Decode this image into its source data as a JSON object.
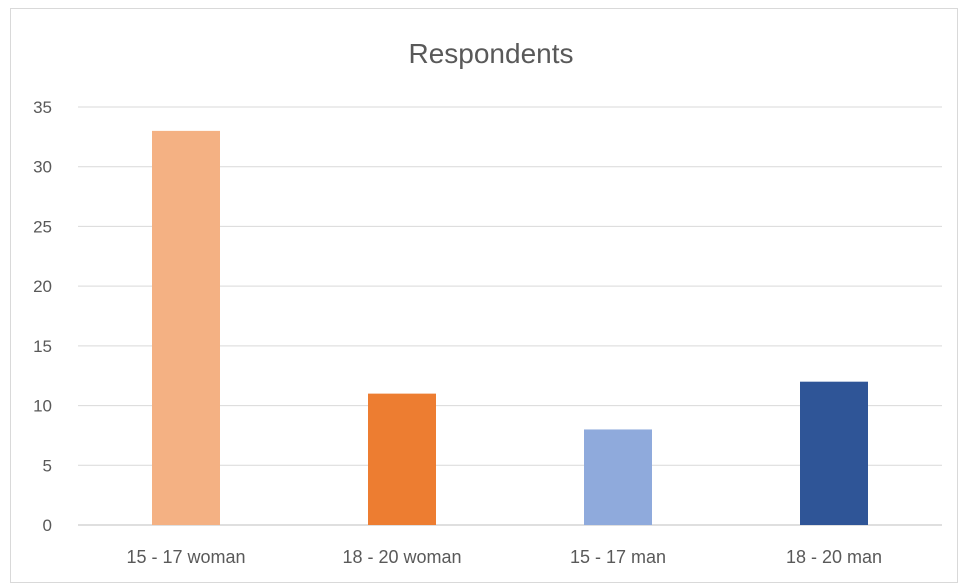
{
  "chart_data": {
    "type": "bar",
    "title": "Respondents",
    "xlabel": "",
    "ylabel": "",
    "categories": [
      "15 - 17 woman",
      "18 - 20 woman",
      "15 - 17 man",
      "18 - 20 man"
    ],
    "values": [
      33,
      11,
      8,
      12
    ],
    "colors": [
      "#f4b183",
      "#ed7d31",
      "#8faadc",
      "#2f5597"
    ],
    "ylim": [
      0,
      35
    ],
    "yticks": [
      "0",
      "5",
      "10",
      "15",
      "20",
      "25",
      "30",
      "35"
    ],
    "grid": true,
    "legend": "none"
  }
}
